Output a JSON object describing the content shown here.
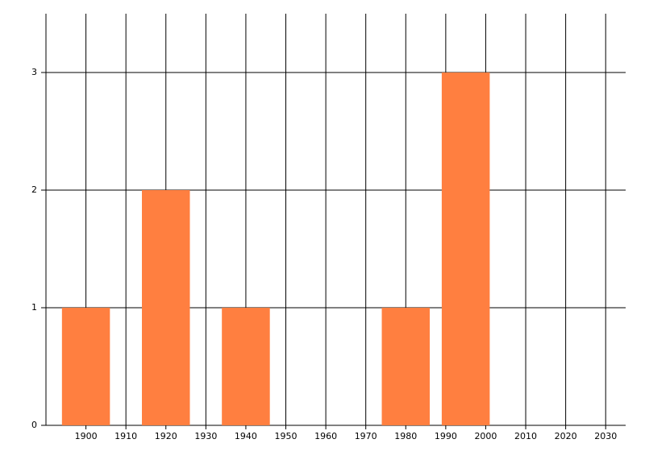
{
  "chart_data": {
    "type": "bar",
    "x": [
      1900,
      1920,
      1940,
      1980,
      1995
    ],
    "values": [
      1,
      2,
      1,
      1,
      3
    ],
    "color": "#ff7f40",
    "xlim": [
      1890,
      2035
    ],
    "xticks": [
      1900,
      1910,
      1920,
      1930,
      1940,
      1950,
      1960,
      1970,
      1980,
      1990,
      2000,
      2010,
      2020,
      2030
    ],
    "ylim": [
      0,
      3.5
    ],
    "yticks": [
      0,
      1,
      2,
      3
    ],
    "grid": true
  }
}
